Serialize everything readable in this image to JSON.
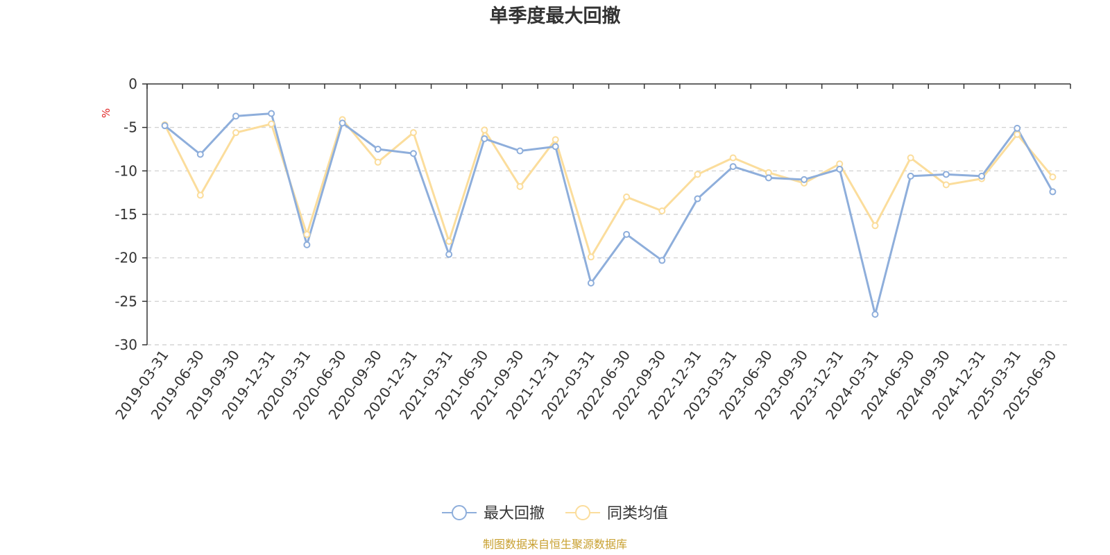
{
  "chart_data": {
    "type": "line",
    "title": "单季度最大回撤",
    "ylabel": "%",
    "ylim": [
      -30,
      0
    ],
    "yticks": [
      0,
      -5,
      -10,
      -15,
      -20,
      -25,
      -30
    ],
    "grid": "horizontal-dashed",
    "legend_position": "bottom-center",
    "categories": [
      "2019-03-31",
      "2019-06-30",
      "2019-09-30",
      "2019-12-31",
      "2020-03-31",
      "2020-06-30",
      "2020-09-30",
      "2020-12-31",
      "2021-03-31",
      "2021-06-30",
      "2021-09-30",
      "2021-12-31",
      "2022-03-31",
      "2022-06-30",
      "2022-09-30",
      "2022-12-31",
      "2023-03-31",
      "2023-06-30",
      "2023-09-30",
      "2023-12-31",
      "2024-03-31",
      "2024-06-30",
      "2024-09-30",
      "2024-12-31",
      "2025-03-31",
      "2025-06-30"
    ],
    "series": [
      {
        "name": "最大回撤",
        "color": "#8eaedb",
        "values": [
          -4.8,
          -8.1,
          -3.7,
          -3.4,
          -18.5,
          -4.5,
          -7.5,
          -8.0,
          -19.6,
          -6.3,
          -7.7,
          -7.2,
          -22.9,
          -17.3,
          -20.3,
          -13.2,
          -9.5,
          -10.8,
          -11.0,
          -9.8,
          -26.5,
          -10.6,
          -10.4,
          -10.6,
          -5.1,
          -12.4
        ]
      },
      {
        "name": "同类均值",
        "color": "#fbdd9c",
        "values": [
          -4.7,
          -12.8,
          -5.6,
          -4.6,
          -17.3,
          -4.1,
          -9.0,
          -5.6,
          -18.1,
          -5.3,
          -11.8,
          -6.4,
          -19.9,
          -13.0,
          -14.6,
          -10.4,
          -8.5,
          -10.2,
          -11.4,
          -9.2,
          -16.3,
          -8.5,
          -11.6,
          -10.9,
          -5.8,
          -10.7
        ]
      }
    ],
    "source": "制图数据来自恒生聚源数据库",
    "source_color": "#c8a030",
    "unit_color": "#e02020"
  }
}
